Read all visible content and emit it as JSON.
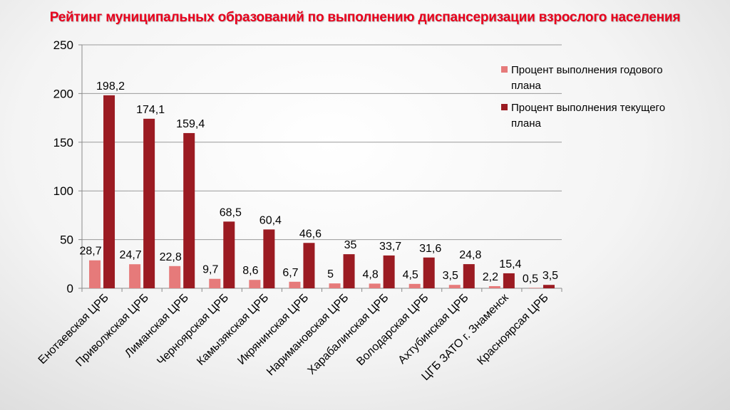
{
  "title": "Рейтинг муниципальных образований по выполнению диспансеризации взрослого населения",
  "colors": {
    "annual": "#e67a7a",
    "current": "#9b1b22",
    "title": "#e8001c"
  },
  "chart_data": {
    "type": "bar",
    "title": "Рейтинг муниципальных образований по выполнению диспансеризации взрослого населения",
    "categories": [
      "Енотаевская ЦРБ",
      "Приволжская ЦРБ",
      "Лиманская ЦРБ",
      "Черноярская ЦРБ",
      "Камызякская ЦРБ",
      "Икрянинская ЦРБ",
      "Наримановская ЦРБ",
      "Харабалинская ЦРБ",
      "Володарская ЦРБ",
      "Ахтубинская ЦРБ",
      "ЦГБ ЗАТО г. Знаменск",
      "Красноярсая ЦРБ"
    ],
    "series": [
      {
        "name": "Процент выполнения годового плана",
        "values": [
          28.7,
          24.7,
          22.8,
          9.7,
          8.6,
          6.7,
          5,
          4.8,
          4.5,
          3.5,
          2.2,
          0.5
        ],
        "labels": [
          "28,7",
          "24,7",
          "22,8",
          "9,7",
          "8,6",
          "6,7",
          "5",
          "4,8",
          "4,5",
          "3,5",
          "2,2",
          "0,5"
        ]
      },
      {
        "name": "Процент выполнения текущего плана",
        "values": [
          198.2,
          174.1,
          159.4,
          68.5,
          60.4,
          46.6,
          35,
          33.7,
          31.6,
          24.8,
          15.4,
          3.5
        ],
        "labels": [
          "198,2",
          "174,1",
          "159,4",
          "68,5",
          "60,4",
          "46,6",
          "35",
          "33,7",
          "31,6",
          "24,8",
          "15,4",
          "3,5"
        ]
      }
    ],
    "ylim": [
      0,
      250
    ],
    "yticks": [
      "0",
      "50",
      "100",
      "150",
      "200",
      "250"
    ],
    "grid": true,
    "legend_position": "right",
    "legend": [
      {
        "line1": "Процент выполнения годового",
        "line2": "плана"
      },
      {
        "line1": "Процент выполнения текущего",
        "line2": "плана"
      }
    ]
  }
}
